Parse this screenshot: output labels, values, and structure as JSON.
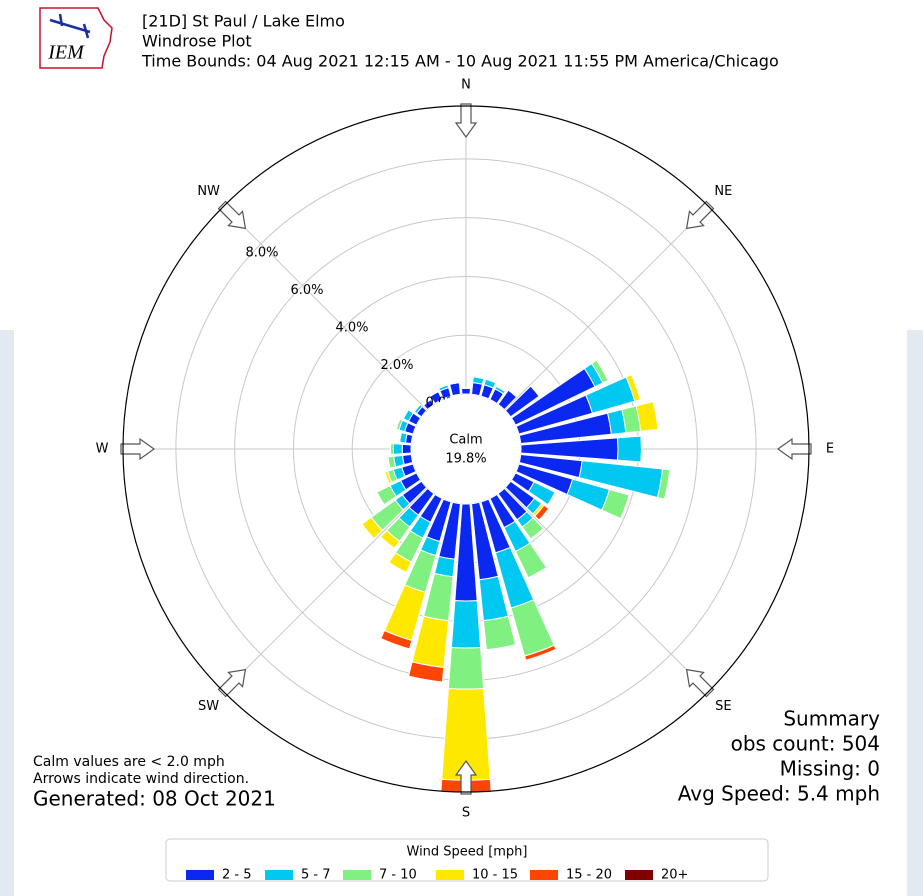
{
  "header": {
    "title": "[21D] St Paul / Lake Elmo",
    "subtitle": "Windrose Plot",
    "time_bounds": "Time Bounds: 04 Aug 2021 12:15 AM - 10 Aug 2021 11:55 PM America/Chicago",
    "logo": "IEM"
  },
  "chart_data": {
    "type": "windrose",
    "x": [
      0,
      10,
      20,
      30,
      40,
      50,
      60,
      70,
      80,
      90,
      100,
      110,
      120,
      130,
      140,
      150,
      160,
      170,
      180,
      190,
      200,
      210,
      220,
      230,
      240,
      250,
      260,
      270,
      280,
      290,
      300,
      310,
      320,
      330,
      340,
      350
    ],
    "xticks": [
      {
        "value": 0,
        "label": "N"
      },
      {
        "value": 45,
        "label": "NE"
      },
      {
        "value": 90,
        "label": "E"
      },
      {
        "value": 135,
        "label": "SE"
      },
      {
        "value": 180,
        "label": "S"
      },
      {
        "value": 225,
        "label": "SW"
      },
      {
        "value": 270,
        "label": "W"
      },
      {
        "value": 315,
        "label": "NW"
      }
    ],
    "ylim": [
      0,
      9.8
    ],
    "yticks": [
      {
        "value": 0,
        "label": "0.0%"
      },
      {
        "value": 2,
        "label": "2.0%"
      },
      {
        "value": 4,
        "label": "4.0%"
      },
      {
        "value": 6,
        "label": "6.0%"
      },
      {
        "value": 8,
        "label": "8.0%"
      }
    ],
    "grid": true,
    "calm_label": "Calm",
    "calm": {
      "value": 19.8,
      "label": "19.8%"
    },
    "legend_title": "Wind Speed [mph]",
    "series": [
      {
        "name": "2 - 5",
        "color": "#0a28f0",
        "values": [
          0.2,
          0.4,
          0.4,
          0.4,
          0.6,
          1.2,
          3.0,
          2.6,
          3.1,
          3.3,
          2.1,
          1.9,
          0.7,
          1.0,
          1.1,
          1.1,
          1.8,
          2.6,
          3.3,
          1.9,
          1.4,
          0.9,
          0.9,
          0.8,
          0.6,
          0.4,
          0.3,
          0.3,
          0.2,
          0.3,
          0.3,
          0.2,
          0.2,
          0.3,
          0.3,
          0.4
        ]
      },
      {
        "name": "5 - 7",
        "color": "#00c8f0",
        "values": [
          0,
          0.2,
          0.2,
          0.1,
          0,
          0,
          0.3,
          1.5,
          0.5,
          0.8,
          2.75,
          1.3,
          0.8,
          0.3,
          0.3,
          0.9,
          1.95,
          1.4,
          1.6,
          0.6,
          0.5,
          0.6,
          0.5,
          0.3,
          0.4,
          0.3,
          0.3,
          0.3,
          0.2,
          0.2,
          0.2,
          0.1,
          0,
          0,
          0.1,
          0
        ]
      },
      {
        "name": "7 - 10",
        "color": "#80f080",
        "values": [
          0,
          0,
          0,
          0,
          0,
          0,
          0.2,
          0,
          0.5,
          0,
          0.25,
          0.7,
          0,
          0,
          0.5,
          1.0,
          1.7,
          1.0,
          1.4,
          1.5,
          1.3,
          0.9,
          0.6,
          1.0,
          0.5,
          0.2,
          0.2,
          0.1,
          0,
          0.1,
          0,
          0,
          0,
          0,
          0,
          0
        ]
      },
      {
        "name": "10 - 15",
        "color": "#ffe800",
        "values": [
          0,
          0,
          0,
          0,
          0,
          0,
          0,
          0.2,
          0.6,
          0,
          0,
          0,
          0,
          0.1,
          0,
          0,
          0,
          0,
          3.1,
          1.6,
          1.7,
          0.4,
          0.3,
          0.4,
          0,
          0.1,
          0,
          0,
          0,
          0,
          0,
          0,
          0,
          0,
          0,
          0
        ]
      },
      {
        "name": "15 - 20",
        "color": "#ff4500",
        "values": [
          0,
          0,
          0,
          0,
          0,
          0,
          0,
          0,
          0,
          0,
          0,
          0,
          0,
          0.2,
          0,
          0,
          0.15,
          0,
          0.4,
          0.5,
          0.3,
          0,
          0,
          0,
          0,
          0,
          0,
          0,
          0,
          0,
          0,
          0,
          0,
          0,
          0,
          0
        ]
      },
      {
        "name": "20+",
        "color": "#800000",
        "values": [
          0,
          0,
          0,
          0,
          0,
          0,
          0,
          0,
          0,
          0,
          0,
          0,
          0,
          0,
          0,
          0,
          0,
          0,
          0,
          0,
          0,
          0,
          0,
          0,
          0,
          0,
          0,
          0,
          0,
          0,
          0,
          0,
          0,
          0,
          0,
          0
        ]
      }
    ]
  },
  "notes": {
    "calm_note": "Calm values are < 2.0 mph",
    "arrow_note": "Arrows indicate wind direction.",
    "generated": "Generated: 08 Oct 2021"
  },
  "summary": {
    "title": "Summary",
    "obs_count": "obs count: 504",
    "missing": "Missing: 0",
    "avg_speed": "Avg Speed: 5.4 mph"
  }
}
